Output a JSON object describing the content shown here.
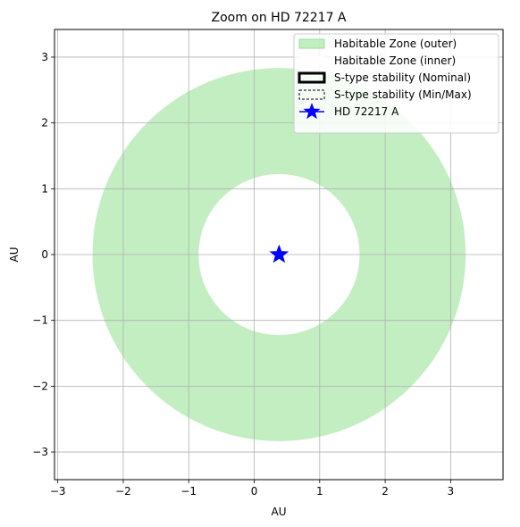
{
  "chart_data": {
    "type": "scatter",
    "title": "Zoom on HD 72217  A",
    "xlabel": "AU",
    "ylabel": "AU",
    "xlim": [
      -3.05,
      3.8
    ],
    "ylim": [
      -3.42,
      3.42
    ],
    "xticks": [
      -3,
      -2,
      -1,
      0,
      1,
      2,
      3
    ],
    "yticks": [
      -3,
      -2,
      -1,
      0,
      1,
      2,
      3
    ],
    "grid": true,
    "legend_position": "top-right",
    "star": {
      "name": "HD 72217  A",
      "x": 0.38,
      "y": 0.0,
      "color": "#0000ff"
    },
    "habitable_zone": {
      "center": [
        0.38,
        0.0
      ],
      "outer_radius_au": 2.85,
      "inner_radius_au": 1.23,
      "fill_color": "#90e090"
    },
    "legend": [
      {
        "label": "Habitable Zone (outer)",
        "style": "patch-green"
      },
      {
        "label": "Habitable Zone (inner)",
        "style": "patch-white"
      },
      {
        "label": "S-type stability (Nominal)",
        "style": "patch-bold-outline"
      },
      {
        "label": "S-type stability (Min/Max)",
        "style": "patch-dashed-outline"
      },
      {
        "label": "HD 72217  A",
        "style": "star-marker"
      }
    ]
  }
}
